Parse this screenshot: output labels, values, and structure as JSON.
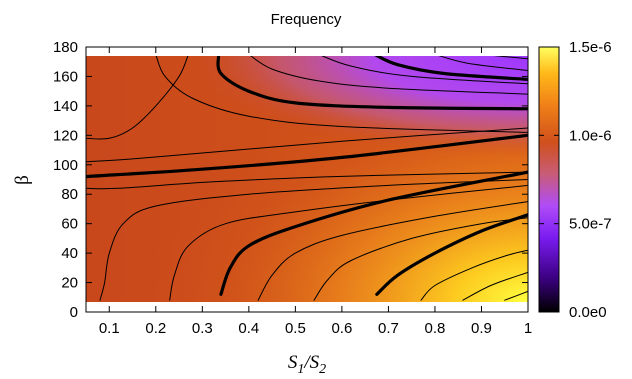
{
  "chart_data": {
    "type": "heatmap",
    "title": "Frequency",
    "xlabel": "S1/S2",
    "xlabel_parts": [
      "S",
      "1",
      "/S",
      "2"
    ],
    "ylabel": "β",
    "xlim": [
      0.05,
      1.0
    ],
    "ylim": [
      0,
      180
    ],
    "data_y_range": [
      5,
      175
    ],
    "x_ticks": [
      "0.1",
      "0.2",
      "0.3",
      "0.4",
      "0.5",
      "0.6",
      "0.7",
      "0.8",
      "0.9",
      "1"
    ],
    "x_tick_values": [
      0.1,
      0.2,
      0.3,
      0.4,
      0.5,
      0.6,
      0.7,
      0.8,
      0.9,
      1.0
    ],
    "y_ticks": [
      "0",
      "20",
      "40",
      "60",
      "80",
      "100",
      "120",
      "140",
      "160",
      "180"
    ],
    "y_tick_values": [
      0,
      20,
      40,
      60,
      80,
      100,
      120,
      140,
      160,
      180
    ],
    "colorbar": {
      "range": [
        0,
        1.5e-06
      ],
      "ticks": [
        "0.0e0",
        "5.0e-7",
        "1.0e-6",
        "1.5e-6"
      ],
      "tick_values": [
        0,
        5e-07,
        1e-06,
        1.5e-06
      ],
      "colormap": [
        "#000000",
        "#5a00c0",
        "#a040ff",
        "#d0501c",
        "#ffa010",
        "#ffff60"
      ]
    },
    "field_samples": [
      {
        "x": 0.05,
        "y": 175,
        "value": 1e-06
      },
      {
        "x": 0.3,
        "y": 175,
        "value": 8e-07
      },
      {
        "x": 0.6,
        "y": 175,
        "value": 5e-07
      },
      {
        "x": 1.0,
        "y": 175,
        "value": 4.5e-07
      },
      {
        "x": 0.05,
        "y": 90,
        "value": 1e-06
      },
      {
        "x": 1.0,
        "y": 100,
        "value": 1.05e-06
      },
      {
        "x": 0.5,
        "y": 50,
        "value": 1.15e-06
      },
      {
        "x": 1.0,
        "y": 5,
        "value": 1.45e-06
      }
    ],
    "contours": [
      {
        "bold": true,
        "points": [
          [
            0.05,
            92
          ],
          [
            0.3,
            97
          ],
          [
            0.6,
            105
          ],
          [
            1.0,
            120
          ]
        ]
      },
      {
        "bold": false,
        "points": [
          [
            0.05,
            84
          ],
          [
            0.12,
            84
          ],
          [
            0.3,
            88
          ],
          [
            0.5,
            91
          ],
          [
            0.7,
            93
          ],
          [
            1.0,
            95
          ]
        ]
      },
      {
        "bold": false,
        "points": [
          [
            0.05,
            102
          ],
          [
            0.15,
            104
          ],
          [
            0.3,
            108
          ],
          [
            0.6,
            116
          ],
          [
            1.0,
            125
          ]
        ]
      },
      {
        "bold": true,
        "points": [
          [
            0.34,
            12
          ],
          [
            0.36,
            30
          ],
          [
            0.4,
            45
          ],
          [
            0.5,
            58
          ],
          [
            0.7,
            76
          ],
          [
            1.0,
            95
          ]
        ]
      },
      {
        "bold": true,
        "points": [
          [
            0.675,
            12
          ],
          [
            0.72,
            25
          ],
          [
            0.8,
            40
          ],
          [
            0.9,
            55
          ],
          [
            1.0,
            66
          ]
        ]
      },
      {
        "bold": false,
        "points": [
          [
            0.08,
            8
          ],
          [
            0.09,
            20
          ],
          [
            0.1,
            40
          ],
          [
            0.13,
            60
          ],
          [
            0.2,
            72
          ],
          [
            0.4,
            80
          ],
          [
            0.7,
            86
          ],
          [
            1.0,
            90
          ]
        ]
      },
      {
        "bold": false,
        "points": [
          [
            0.23,
            8
          ],
          [
            0.24,
            25
          ],
          [
            0.27,
            45
          ],
          [
            0.35,
            60
          ],
          [
            0.5,
            68
          ],
          [
            0.7,
            76
          ],
          [
            1.0,
            86
          ]
        ]
      },
      {
        "bold": false,
        "points": [
          [
            0.42,
            8
          ],
          [
            0.45,
            25
          ],
          [
            0.5,
            40
          ],
          [
            0.6,
            52
          ],
          [
            0.8,
            65
          ],
          [
            1.0,
            75
          ]
        ]
      },
      {
        "bold": false,
        "points": [
          [
            0.54,
            8
          ],
          [
            0.57,
            22
          ],
          [
            0.62,
            35
          ],
          [
            0.75,
            50
          ],
          [
            0.9,
            60
          ],
          [
            1.0,
            64
          ]
        ]
      },
      {
        "bold": false,
        "points": [
          [
            0.77,
            8
          ],
          [
            0.8,
            18
          ],
          [
            0.88,
            30
          ],
          [
            0.95,
            38
          ],
          [
            1.0,
            42
          ]
        ]
      },
      {
        "bold": false,
        "points": [
          [
            0.86,
            8
          ],
          [
            0.92,
            18
          ],
          [
            1.0,
            27
          ]
        ]
      },
      {
        "bold": false,
        "points": [
          [
            0.95,
            8
          ],
          [
            1.0,
            14
          ]
        ]
      },
      {
        "bold": false,
        "points": [
          [
            0.2,
            175
          ],
          [
            0.22,
            160
          ],
          [
            0.28,
            145
          ],
          [
            0.4,
            133
          ],
          [
            0.6,
            126
          ],
          [
            1.0,
            122
          ]
        ]
      },
      {
        "bold": true,
        "points": [
          [
            0.335,
            175
          ],
          [
            0.34,
            162
          ],
          [
            0.4,
            150
          ],
          [
            0.5,
            142
          ],
          [
            0.7,
            139
          ],
          [
            1.0,
            138
          ]
        ]
      },
      {
        "bold": false,
        "points": [
          [
            0.4,
            175
          ],
          [
            0.45,
            165
          ],
          [
            0.55,
            157
          ],
          [
            0.7,
            152
          ],
          [
            1.0,
            148
          ]
        ]
      },
      {
        "bold": false,
        "points": [
          [
            0.55,
            175
          ],
          [
            0.62,
            167
          ],
          [
            0.75,
            160
          ],
          [
            1.0,
            155
          ]
        ]
      },
      {
        "bold": true,
        "points": [
          [
            0.67,
            175
          ],
          [
            0.72,
            168
          ],
          [
            0.82,
            162
          ],
          [
            1.0,
            158
          ]
        ]
      },
      {
        "bold": false,
        "points": [
          [
            0.8,
            175
          ],
          [
            0.87,
            169
          ],
          [
            1.0,
            164
          ]
        ]
      },
      {
        "bold": false,
        "points": [
          [
            0.9,
            175
          ],
          [
            1.0,
            172
          ]
        ]
      },
      {
        "bold": false,
        "points": [
          [
            0.05,
            118
          ],
          [
            0.1,
            118
          ],
          [
            0.15,
            125
          ],
          [
            0.2,
            140
          ],
          [
            0.25,
            160
          ],
          [
            0.27,
            175
          ]
        ]
      }
    ]
  }
}
